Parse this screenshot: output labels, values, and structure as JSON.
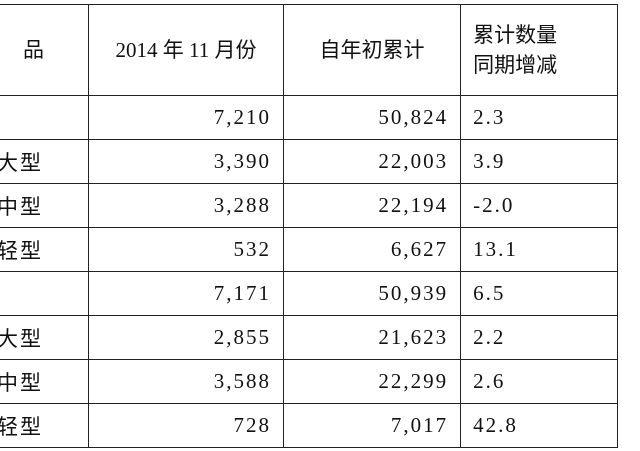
{
  "table": {
    "header": [
      "品",
      "2014 年 11 月份",
      "自年初累计",
      "累计数量\n同期增减"
    ],
    "rows": [
      [
        "",
        "7,210",
        "50,824",
        "2.3"
      ],
      [
        "大型",
        "3,390",
        "22,003",
        "3.9"
      ],
      [
        "中型",
        "3,288",
        "22,194",
        "-2.0"
      ],
      [
        "轻型",
        "532",
        "6,627",
        "13.1"
      ],
      [
        "",
        "7,171",
        "50,939",
        "6.5"
      ],
      [
        "大型",
        "2,855",
        "21,623",
        "2.2"
      ],
      [
        "中型",
        "3,588",
        "22,299",
        "2.6"
      ],
      [
        "轻型",
        "728",
        "7,017",
        "42.8"
      ]
    ]
  }
}
